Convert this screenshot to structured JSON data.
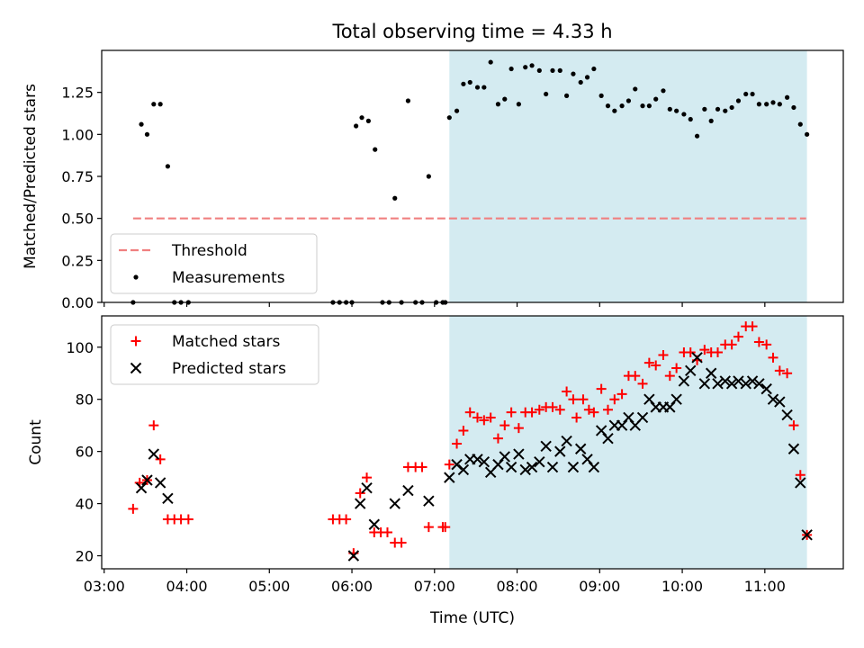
{
  "chart_data": {
    "title": "Total observing time = 4.33 h",
    "type": "scatter",
    "xlabel": "Time (UTC)",
    "x_unit": "hours UTC",
    "xlim": [
      2.97,
      11.95
    ],
    "xticks": [
      3,
      4,
      5,
      6,
      7,
      8,
      9,
      10,
      11
    ],
    "xtick_labels": [
      "03:00",
      "04:00",
      "05:00",
      "06:00",
      "07:00",
      "08:00",
      "09:00",
      "10:00",
      "11:00"
    ],
    "shaded_region": {
      "x": [
        7.18,
        11.51
      ],
      "color": "#add8e6",
      "alpha": 0.5
    },
    "colors": {
      "threshold": "#f08080",
      "measurements": "#000000",
      "matched": "#ff0000",
      "predicted": "#000000",
      "shade": "#d4ebf1"
    },
    "panels": [
      {
        "id": "ratio",
        "ylabel": "Matched/Predicted stars",
        "ylim": [
          0,
          1.5
        ],
        "yticks": [
          0.0,
          0.25,
          0.5,
          0.75,
          1.0,
          1.25
        ],
        "ytick_labels": [
          "0.00",
          "0.25",
          "0.50",
          "0.75",
          "1.00",
          "1.25"
        ],
        "legend_position": "lower-left",
        "legend": [
          {
            "name": "Threshold",
            "marker": "dashed-line"
          },
          {
            "name": "Measurements",
            "marker": "dot"
          }
        ],
        "threshold": {
          "name": "Threshold",
          "y": 0.5,
          "x": [
            3.35,
            11.5
          ]
        },
        "series": [
          {
            "name": "Measurements",
            "marker": "dot",
            "points": [
              [
                3.35,
                0.0
              ],
              [
                3.45,
                1.06
              ],
              [
                3.52,
                1.0
              ],
              [
                3.6,
                1.18
              ],
              [
                3.68,
                1.18
              ],
              [
                3.77,
                0.81
              ],
              [
                3.85,
                0.0
              ],
              [
                3.93,
                0.0
              ],
              [
                4.02,
                0.0
              ],
              [
                5.77,
                0.0
              ],
              [
                5.85,
                0.0
              ],
              [
                5.93,
                0.0
              ],
              [
                6.0,
                0.0
              ],
              [
                6.05,
                1.05
              ],
              [
                6.12,
                1.1
              ],
              [
                6.2,
                1.08
              ],
              [
                6.28,
                0.91
              ],
              [
                6.37,
                0.0
              ],
              [
                6.45,
                0.0
              ],
              [
                6.52,
                0.62
              ],
              [
                6.6,
                0.0
              ],
              [
                6.68,
                1.2
              ],
              [
                6.77,
                0.0
              ],
              [
                6.85,
                0.0
              ],
              [
                6.93,
                0.75
              ],
              [
                7.02,
                0.0
              ],
              [
                7.1,
                0.0
              ],
              [
                7.13,
                0.0
              ],
              [
                7.18,
                1.1
              ],
              [
                7.27,
                1.14
              ],
              [
                7.35,
                1.3
              ],
              [
                7.43,
                1.31
              ],
              [
                7.52,
                1.28
              ],
              [
                7.6,
                1.28
              ],
              [
                7.68,
                1.43
              ],
              [
                7.77,
                1.18
              ],
              [
                7.85,
                1.21
              ],
              [
                7.93,
                1.39
              ],
              [
                8.02,
                1.18
              ],
              [
                8.1,
                1.4
              ],
              [
                8.18,
                1.41
              ],
              [
                8.27,
                1.38
              ],
              [
                8.35,
                1.24
              ],
              [
                8.43,
                1.38
              ],
              [
                8.52,
                1.38
              ],
              [
                8.6,
                1.23
              ],
              [
                8.68,
                1.36
              ],
              [
                8.77,
                1.31
              ],
              [
                8.85,
                1.34
              ],
              [
                8.93,
                1.39
              ],
              [
                9.02,
                1.23
              ],
              [
                9.1,
                1.17
              ],
              [
                9.18,
                1.14
              ],
              [
                9.27,
                1.17
              ],
              [
                9.35,
                1.2
              ],
              [
                9.43,
                1.27
              ],
              [
                9.52,
                1.17
              ],
              [
                9.6,
                1.17
              ],
              [
                9.68,
                1.21
              ],
              [
                9.77,
                1.26
              ],
              [
                9.85,
                1.15
              ],
              [
                9.93,
                1.14
              ],
              [
                10.02,
                1.12
              ],
              [
                10.1,
                1.09
              ],
              [
                10.18,
                0.99
              ],
              [
                10.27,
                1.15
              ],
              [
                10.35,
                1.08
              ],
              [
                10.43,
                1.15
              ],
              [
                10.52,
                1.14
              ],
              [
                10.6,
                1.16
              ],
              [
                10.68,
                1.2
              ],
              [
                10.77,
                1.24
              ],
              [
                10.85,
                1.24
              ],
              [
                10.93,
                1.18
              ],
              [
                11.02,
                1.18
              ],
              [
                11.1,
                1.19
              ],
              [
                11.18,
                1.18
              ],
              [
                11.27,
                1.22
              ],
              [
                11.35,
                1.16
              ],
              [
                11.43,
                1.06
              ],
              [
                11.51,
                1.0
              ]
            ]
          }
        ]
      },
      {
        "id": "count",
        "ylabel": "Count",
        "ylim": [
          15,
          112
        ],
        "yticks": [
          20,
          40,
          60,
          80,
          100
        ],
        "ytick_labels": [
          "20",
          "40",
          "60",
          "80",
          "100"
        ],
        "legend_position": "upper-left",
        "legend": [
          {
            "name": "Matched stars",
            "marker": "plus"
          },
          {
            "name": "Predicted stars",
            "marker": "x"
          }
        ],
        "series": [
          {
            "name": "Matched stars",
            "marker": "plus",
            "points": [
              [
                3.35,
                38
              ],
              [
                3.43,
                48
              ],
              [
                3.52,
                49
              ],
              [
                3.6,
                70
              ],
              [
                3.68,
                57
              ],
              [
                3.77,
                34
              ],
              [
                3.85,
                34
              ],
              [
                3.93,
                34
              ],
              [
                4.02,
                34
              ],
              [
                5.77,
                34
              ],
              [
                5.85,
                34
              ],
              [
                5.93,
                34
              ],
              [
                6.02,
                21
              ],
              [
                6.1,
                44
              ],
              [
                6.18,
                50
              ],
              [
                6.27,
                29
              ],
              [
                6.35,
                29
              ],
              [
                6.43,
                29
              ],
              [
                6.52,
                25
              ],
              [
                6.6,
                25
              ],
              [
                6.68,
                54
              ],
              [
                6.77,
                54
              ],
              [
                6.85,
                54
              ],
              [
                6.93,
                31
              ],
              [
                7.1,
                31
              ],
              [
                7.13,
                31
              ],
              [
                7.18,
                55
              ],
              [
                7.27,
                63
              ],
              [
                7.35,
                68
              ],
              [
                7.43,
                75
              ],
              [
                7.52,
                73
              ],
              [
                7.6,
                72
              ],
              [
                7.68,
                73
              ],
              [
                7.77,
                65
              ],
              [
                7.85,
                70
              ],
              [
                7.93,
                75
              ],
              [
                8.02,
                69
              ],
              [
                8.1,
                75
              ],
              [
                8.18,
                75
              ],
              [
                8.27,
                76
              ],
              [
                8.35,
                77
              ],
              [
                8.43,
                77
              ],
              [
                8.52,
                76
              ],
              [
                8.6,
                83
              ],
              [
                8.68,
                80
              ],
              [
                8.72,
                73
              ],
              [
                8.8,
                80
              ],
              [
                8.87,
                76
              ],
              [
                8.93,
                75
              ],
              [
                9.02,
                84
              ],
              [
                9.1,
                76
              ],
              [
                9.18,
                80
              ],
              [
                9.27,
                82
              ],
              [
                9.35,
                89
              ],
              [
                9.43,
                89
              ],
              [
                9.52,
                86
              ],
              [
                9.6,
                94
              ],
              [
                9.68,
                93
              ],
              [
                9.77,
                97
              ],
              [
                9.85,
                89
              ],
              [
                9.93,
                92
              ],
              [
                10.02,
                98
              ],
              [
                10.1,
                98
              ],
              [
                10.18,
                95
              ],
              [
                10.27,
                99
              ],
              [
                10.35,
                98
              ],
              [
                10.43,
                98
              ],
              [
                10.52,
                101
              ],
              [
                10.6,
                101
              ],
              [
                10.68,
                104
              ],
              [
                10.77,
                108
              ],
              [
                10.85,
                108
              ],
              [
                10.93,
                102
              ],
              [
                11.02,
                101
              ],
              [
                11.1,
                96
              ],
              [
                11.18,
                91
              ],
              [
                11.27,
                90
              ],
              [
                11.35,
                70
              ],
              [
                11.43,
                51
              ],
              [
                11.51,
                28
              ]
            ]
          },
          {
            "name": "Predicted stars",
            "marker": "x",
            "points": [
              [
                3.45,
                46
              ],
              [
                3.52,
                49
              ],
              [
                3.6,
                59
              ],
              [
                3.68,
                48
              ],
              [
                3.77,
                42
              ],
              [
                6.02,
                20
              ],
              [
                6.1,
                40
              ],
              [
                6.18,
                46
              ],
              [
                6.27,
                32
              ],
              [
                6.52,
                40
              ],
              [
                6.68,
                45
              ],
              [
                6.93,
                41
              ],
              [
                7.18,
                50
              ],
              [
                7.27,
                55
              ],
              [
                7.35,
                53
              ],
              [
                7.43,
                57
              ],
              [
                7.52,
                57
              ],
              [
                7.6,
                56
              ],
              [
                7.68,
                52
              ],
              [
                7.77,
                55
              ],
              [
                7.85,
                58
              ],
              [
                7.93,
                54
              ],
              [
                8.02,
                59
              ],
              [
                8.1,
                53
              ],
              [
                8.18,
                54
              ],
              [
                8.27,
                56
              ],
              [
                8.35,
                62
              ],
              [
                8.43,
                54
              ],
              [
                8.52,
                60
              ],
              [
                8.6,
                64
              ],
              [
                8.68,
                54
              ],
              [
                8.77,
                61
              ],
              [
                8.85,
                57
              ],
              [
                8.93,
                54
              ],
              [
                9.02,
                68
              ],
              [
                9.1,
                65
              ],
              [
                9.18,
                70
              ],
              [
                9.27,
                70
              ],
              [
                9.35,
                73
              ],
              [
                9.43,
                70
              ],
              [
                9.52,
                73
              ],
              [
                9.6,
                80
              ],
              [
                9.68,
                77
              ],
              [
                9.77,
                77
              ],
              [
                9.85,
                77
              ],
              [
                9.93,
                80
              ],
              [
                10.02,
                87
              ],
              [
                10.1,
                91
              ],
              [
                10.18,
                96
              ],
              [
                10.27,
                86
              ],
              [
                10.35,
                90
              ],
              [
                10.43,
                86
              ],
              [
                10.52,
                87
              ],
              [
                10.6,
                86
              ],
              [
                10.68,
                87
              ],
              [
                10.77,
                86
              ],
              [
                10.85,
                87
              ],
              [
                10.93,
                86
              ],
              [
                11.02,
                84
              ],
              [
                11.1,
                80
              ],
              [
                11.18,
                79
              ],
              [
                11.27,
                74
              ],
              [
                11.35,
                61
              ],
              [
                11.43,
                48
              ],
              [
                11.51,
                28
              ]
            ]
          }
        ]
      }
    ]
  }
}
